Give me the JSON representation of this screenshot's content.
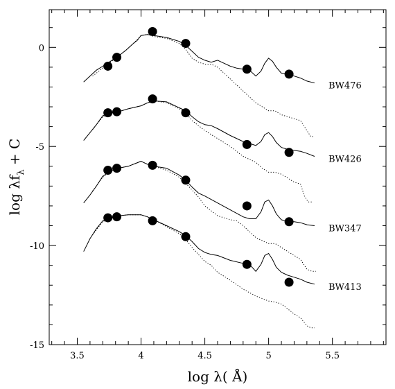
{
  "chart_data": {
    "type": "line",
    "title": "",
    "xlabel": "log λ( Å)",
    "ylabel": "log λf_λ + C",
    "xlim": [
      3.28,
      5.92
    ],
    "ylim": [
      -15,
      1.9
    ],
    "xticks": [
      3.5,
      4,
      4.5,
      5,
      5.5
    ],
    "xtick_labels": [
      "3.5",
      "4",
      "4.5",
      "5",
      "5.5"
    ],
    "yticks": [
      0,
      -5,
      -10,
      -15
    ],
    "ytick_labels": [
      "0",
      "-5",
      "-10",
      "-15"
    ],
    "grid": false,
    "legend": "none",
    "series": [
      {
        "name": "BW476",
        "model_solid": [
          [
            3.55,
            -1.75
          ],
          [
            3.6,
            -1.45
          ],
          [
            3.65,
            -1.15
          ],
          [
            3.7,
            -0.95
          ],
          [
            3.76,
            -0.7
          ],
          [
            3.82,
            -0.45
          ],
          [
            3.88,
            -0.15
          ],
          [
            3.94,
            0.2
          ],
          [
            3.97,
            0.35
          ],
          [
            4.0,
            0.6
          ],
          [
            4.05,
            0.65
          ],
          [
            4.1,
            0.6
          ],
          [
            4.15,
            0.55
          ],
          [
            4.2,
            0.5
          ],
          [
            4.25,
            0.4
          ],
          [
            4.3,
            0.3
          ],
          [
            4.35,
            0.1
          ],
          [
            4.4,
            -0.2
          ],
          [
            4.45,
            -0.5
          ],
          [
            4.5,
            -0.65
          ],
          [
            4.55,
            -0.75
          ],
          [
            4.6,
            -0.65
          ],
          [
            4.65,
            -0.8
          ],
          [
            4.7,
            -0.95
          ],
          [
            4.75,
            -1.05
          ],
          [
            4.8,
            -1.1
          ],
          [
            4.85,
            -1.15
          ],
          [
            4.9,
            -1.45
          ],
          [
            4.94,
            -1.2
          ],
          [
            4.97,
            -0.8
          ],
          [
            5.0,
            -0.55
          ],
          [
            5.03,
            -0.7
          ],
          [
            5.06,
            -1.0
          ],
          [
            5.1,
            -1.3
          ],
          [
            5.15,
            -1.35
          ],
          [
            5.2,
            -1.45
          ],
          [
            5.25,
            -1.55
          ],
          [
            5.3,
            -1.7
          ],
          [
            5.36,
            -1.8
          ]
        ],
        "model_dotted": [
          [
            3.62,
            -1.45
          ],
          [
            3.7,
            -1.05
          ],
          [
            3.76,
            -0.75
          ],
          [
            3.82,
            -0.45
          ],
          [
            3.88,
            -0.15
          ],
          [
            3.94,
            0.2
          ],
          [
            4.0,
            0.6
          ],
          [
            4.05,
            0.65
          ],
          [
            4.1,
            0.55
          ],
          [
            4.2,
            0.45
          ],
          [
            4.3,
            0.2
          ],
          [
            4.35,
            -0.1
          ],
          [
            4.4,
            -0.55
          ],
          [
            4.45,
            -0.75
          ],
          [
            4.5,
            -0.85
          ],
          [
            4.55,
            -0.85
          ],
          [
            4.6,
            -1.0
          ],
          [
            4.7,
            -1.6
          ],
          [
            4.8,
            -2.2
          ],
          [
            4.9,
            -2.8
          ],
          [
            4.95,
            -3.0
          ],
          [
            5.0,
            -3.2
          ],
          [
            5.05,
            -3.2
          ],
          [
            5.1,
            -3.4
          ],
          [
            5.2,
            -3.6
          ],
          [
            5.25,
            -3.7
          ],
          [
            5.3,
            -4.2
          ],
          [
            5.33,
            -4.5
          ],
          [
            5.36,
            -4.5
          ]
        ],
        "photometry": [
          [
            3.74,
            -0.95
          ],
          [
            3.81,
            -0.5
          ],
          [
            4.09,
            0.8
          ],
          [
            4.35,
            0.2
          ],
          [
            4.83,
            -1.1
          ],
          [
            5.16,
            -1.35
          ]
        ]
      },
      {
        "name": "BW426",
        "model_solid": [
          [
            3.55,
            -4.7
          ],
          [
            3.6,
            -4.3
          ],
          [
            3.65,
            -3.9
          ],
          [
            3.7,
            -3.45
          ],
          [
            3.76,
            -3.3
          ],
          [
            3.82,
            -3.25
          ],
          [
            3.9,
            -3.1
          ],
          [
            4.0,
            -2.95
          ],
          [
            4.05,
            -2.8
          ],
          [
            4.1,
            -2.7
          ],
          [
            4.2,
            -2.75
          ],
          [
            4.3,
            -3.05
          ],
          [
            4.35,
            -3.2
          ],
          [
            4.4,
            -3.5
          ],
          [
            4.45,
            -3.75
          ],
          [
            4.5,
            -3.9
          ],
          [
            4.55,
            -3.95
          ],
          [
            4.6,
            -4.1
          ],
          [
            4.7,
            -4.45
          ],
          [
            4.8,
            -4.75
          ],
          [
            4.85,
            -4.85
          ],
          [
            4.9,
            -4.95
          ],
          [
            4.94,
            -4.75
          ],
          [
            4.97,
            -4.4
          ],
          [
            5.0,
            -4.3
          ],
          [
            5.03,
            -4.5
          ],
          [
            5.06,
            -4.8
          ],
          [
            5.1,
            -5.05
          ],
          [
            5.15,
            -5.15
          ],
          [
            5.2,
            -5.2
          ],
          [
            5.25,
            -5.25
          ],
          [
            5.3,
            -5.35
          ],
          [
            5.36,
            -5.5
          ]
        ],
        "model_dotted": [
          [
            3.62,
            -4.15
          ],
          [
            3.7,
            -3.5
          ],
          [
            3.76,
            -3.3
          ],
          [
            3.82,
            -3.25
          ],
          [
            3.9,
            -3.1
          ],
          [
            4.0,
            -2.95
          ],
          [
            4.05,
            -2.8
          ],
          [
            4.1,
            -2.7
          ],
          [
            4.2,
            -2.8
          ],
          [
            4.3,
            -3.1
          ],
          [
            4.35,
            -3.3
          ],
          [
            4.4,
            -3.7
          ],
          [
            4.5,
            -4.2
          ],
          [
            4.6,
            -4.6
          ],
          [
            4.7,
            -5.0
          ],
          [
            4.8,
            -5.5
          ],
          [
            4.9,
            -5.8
          ],
          [
            4.95,
            -6.1
          ],
          [
            5.0,
            -6.3
          ],
          [
            5.05,
            -6.3
          ],
          [
            5.1,
            -6.4
          ],
          [
            5.15,
            -6.6
          ],
          [
            5.2,
            -6.8
          ],
          [
            5.25,
            -6.9
          ],
          [
            5.28,
            -7.5
          ],
          [
            5.31,
            -7.8
          ],
          [
            5.35,
            -7.8
          ]
        ],
        "photometry": [
          [
            3.74,
            -3.3
          ],
          [
            3.81,
            -3.25
          ],
          [
            4.09,
            -2.6
          ],
          [
            4.35,
            -3.3
          ],
          [
            4.83,
            -4.9
          ],
          [
            5.16,
            -5.3
          ]
        ]
      },
      {
        "name": "BW347",
        "model_solid": [
          [
            3.55,
            -7.85
          ],
          [
            3.6,
            -7.45
          ],
          [
            3.65,
            -7.0
          ],
          [
            3.7,
            -6.5
          ],
          [
            3.76,
            -6.25
          ],
          [
            3.82,
            -6.1
          ],
          [
            3.9,
            -6.0
          ],
          [
            4.0,
            -5.75
          ],
          [
            4.05,
            -5.9
          ],
          [
            4.1,
            -6.0
          ],
          [
            4.2,
            -6.1
          ],
          [
            4.3,
            -6.45
          ],
          [
            4.35,
            -6.7
          ],
          [
            4.4,
            -7.05
          ],
          [
            4.45,
            -7.35
          ],
          [
            4.5,
            -7.5
          ],
          [
            4.6,
            -7.85
          ],
          [
            4.7,
            -8.2
          ],
          [
            4.8,
            -8.55
          ],
          [
            4.85,
            -8.65
          ],
          [
            4.9,
            -8.65
          ],
          [
            4.94,
            -8.3
          ],
          [
            4.97,
            -7.8
          ],
          [
            5.0,
            -7.7
          ],
          [
            5.03,
            -8.0
          ],
          [
            5.06,
            -8.4
          ],
          [
            5.1,
            -8.7
          ],
          [
            5.15,
            -8.8
          ],
          [
            5.2,
            -8.8
          ],
          [
            5.25,
            -8.85
          ],
          [
            5.3,
            -8.95
          ],
          [
            5.36,
            -9.0
          ]
        ],
        "model_dotted": [
          [
            3.62,
            -7.25
          ],
          [
            3.7,
            -6.55
          ],
          [
            3.76,
            -6.25
          ],
          [
            3.82,
            -6.1
          ],
          [
            3.9,
            -6.0
          ],
          [
            4.0,
            -5.75
          ],
          [
            4.05,
            -5.9
          ],
          [
            4.1,
            -6.0
          ],
          [
            4.2,
            -6.2
          ],
          [
            4.3,
            -6.55
          ],
          [
            4.35,
            -6.85
          ],
          [
            4.4,
            -7.2
          ],
          [
            4.45,
            -7.55
          ],
          [
            4.5,
            -8.0
          ],
          [
            4.6,
            -8.5
          ],
          [
            4.7,
            -8.7
          ],
          [
            4.75,
            -8.75
          ],
          [
            4.8,
            -9.0
          ],
          [
            4.9,
            -9.6
          ],
          [
            5.0,
            -9.9
          ],
          [
            5.05,
            -9.9
          ],
          [
            5.1,
            -10.1
          ],
          [
            5.15,
            -10.3
          ],
          [
            5.2,
            -10.5
          ],
          [
            5.25,
            -10.7
          ],
          [
            5.3,
            -11.2
          ],
          [
            5.34,
            -11.3
          ],
          [
            5.37,
            -11.3
          ]
        ],
        "photometry": [
          [
            3.74,
            -6.2
          ],
          [
            3.81,
            -6.1
          ],
          [
            4.09,
            -5.95
          ],
          [
            4.35,
            -6.7
          ],
          [
            4.83,
            -8.0
          ],
          [
            5.16,
            -8.8
          ]
        ]
      },
      {
        "name": "BW413",
        "model_solid": [
          [
            3.55,
            -10.3
          ],
          [
            3.6,
            -9.65
          ],
          [
            3.65,
            -9.15
          ],
          [
            3.7,
            -8.75
          ],
          [
            3.76,
            -8.6
          ],
          [
            3.82,
            -8.5
          ],
          [
            3.9,
            -8.45
          ],
          [
            4.0,
            -8.45
          ],
          [
            4.05,
            -8.55
          ],
          [
            4.1,
            -8.7
          ],
          [
            4.2,
            -9.0
          ],
          [
            4.3,
            -9.3
          ],
          [
            4.35,
            -9.5
          ],
          [
            4.4,
            -9.8
          ],
          [
            4.45,
            -10.15
          ],
          [
            4.5,
            -10.35
          ],
          [
            4.55,
            -10.45
          ],
          [
            4.6,
            -10.5
          ],
          [
            4.7,
            -10.75
          ],
          [
            4.8,
            -10.9
          ],
          [
            4.85,
            -10.95
          ],
          [
            4.9,
            -11.3
          ],
          [
            4.94,
            -10.95
          ],
          [
            4.97,
            -10.5
          ],
          [
            5.0,
            -10.4
          ],
          [
            5.03,
            -10.7
          ],
          [
            5.06,
            -11.1
          ],
          [
            5.1,
            -11.35
          ],
          [
            5.15,
            -11.5
          ],
          [
            5.2,
            -11.6
          ],
          [
            5.25,
            -11.7
          ],
          [
            5.3,
            -11.85
          ],
          [
            5.36,
            -11.95
          ]
        ],
        "model_dotted": [
          [
            3.62,
            -9.45
          ],
          [
            3.7,
            -8.8
          ],
          [
            3.76,
            -8.6
          ],
          [
            3.82,
            -8.5
          ],
          [
            3.9,
            -8.45
          ],
          [
            4.0,
            -8.45
          ],
          [
            4.05,
            -8.55
          ],
          [
            4.1,
            -8.7
          ],
          [
            4.2,
            -9.05
          ],
          [
            4.3,
            -9.4
          ],
          [
            4.35,
            -9.7
          ],
          [
            4.4,
            -10.1
          ],
          [
            4.45,
            -10.45
          ],
          [
            4.5,
            -10.8
          ],
          [
            4.55,
            -11.0
          ],
          [
            4.6,
            -11.35
          ],
          [
            4.7,
            -11.75
          ],
          [
            4.8,
            -12.2
          ],
          [
            4.9,
            -12.55
          ],
          [
            5.0,
            -12.8
          ],
          [
            5.05,
            -12.85
          ],
          [
            5.1,
            -12.95
          ],
          [
            5.15,
            -13.2
          ],
          [
            5.2,
            -13.45
          ],
          [
            5.25,
            -13.65
          ],
          [
            5.3,
            -14.05
          ],
          [
            5.33,
            -14.15
          ],
          [
            5.36,
            -14.15
          ]
        ],
        "photometry": [
          [
            3.74,
            -8.6
          ],
          [
            3.81,
            -8.55
          ],
          [
            4.09,
            -8.75
          ],
          [
            4.35,
            -9.55
          ],
          [
            4.83,
            -10.95
          ],
          [
            5.16,
            -11.85
          ]
        ]
      }
    ]
  }
}
